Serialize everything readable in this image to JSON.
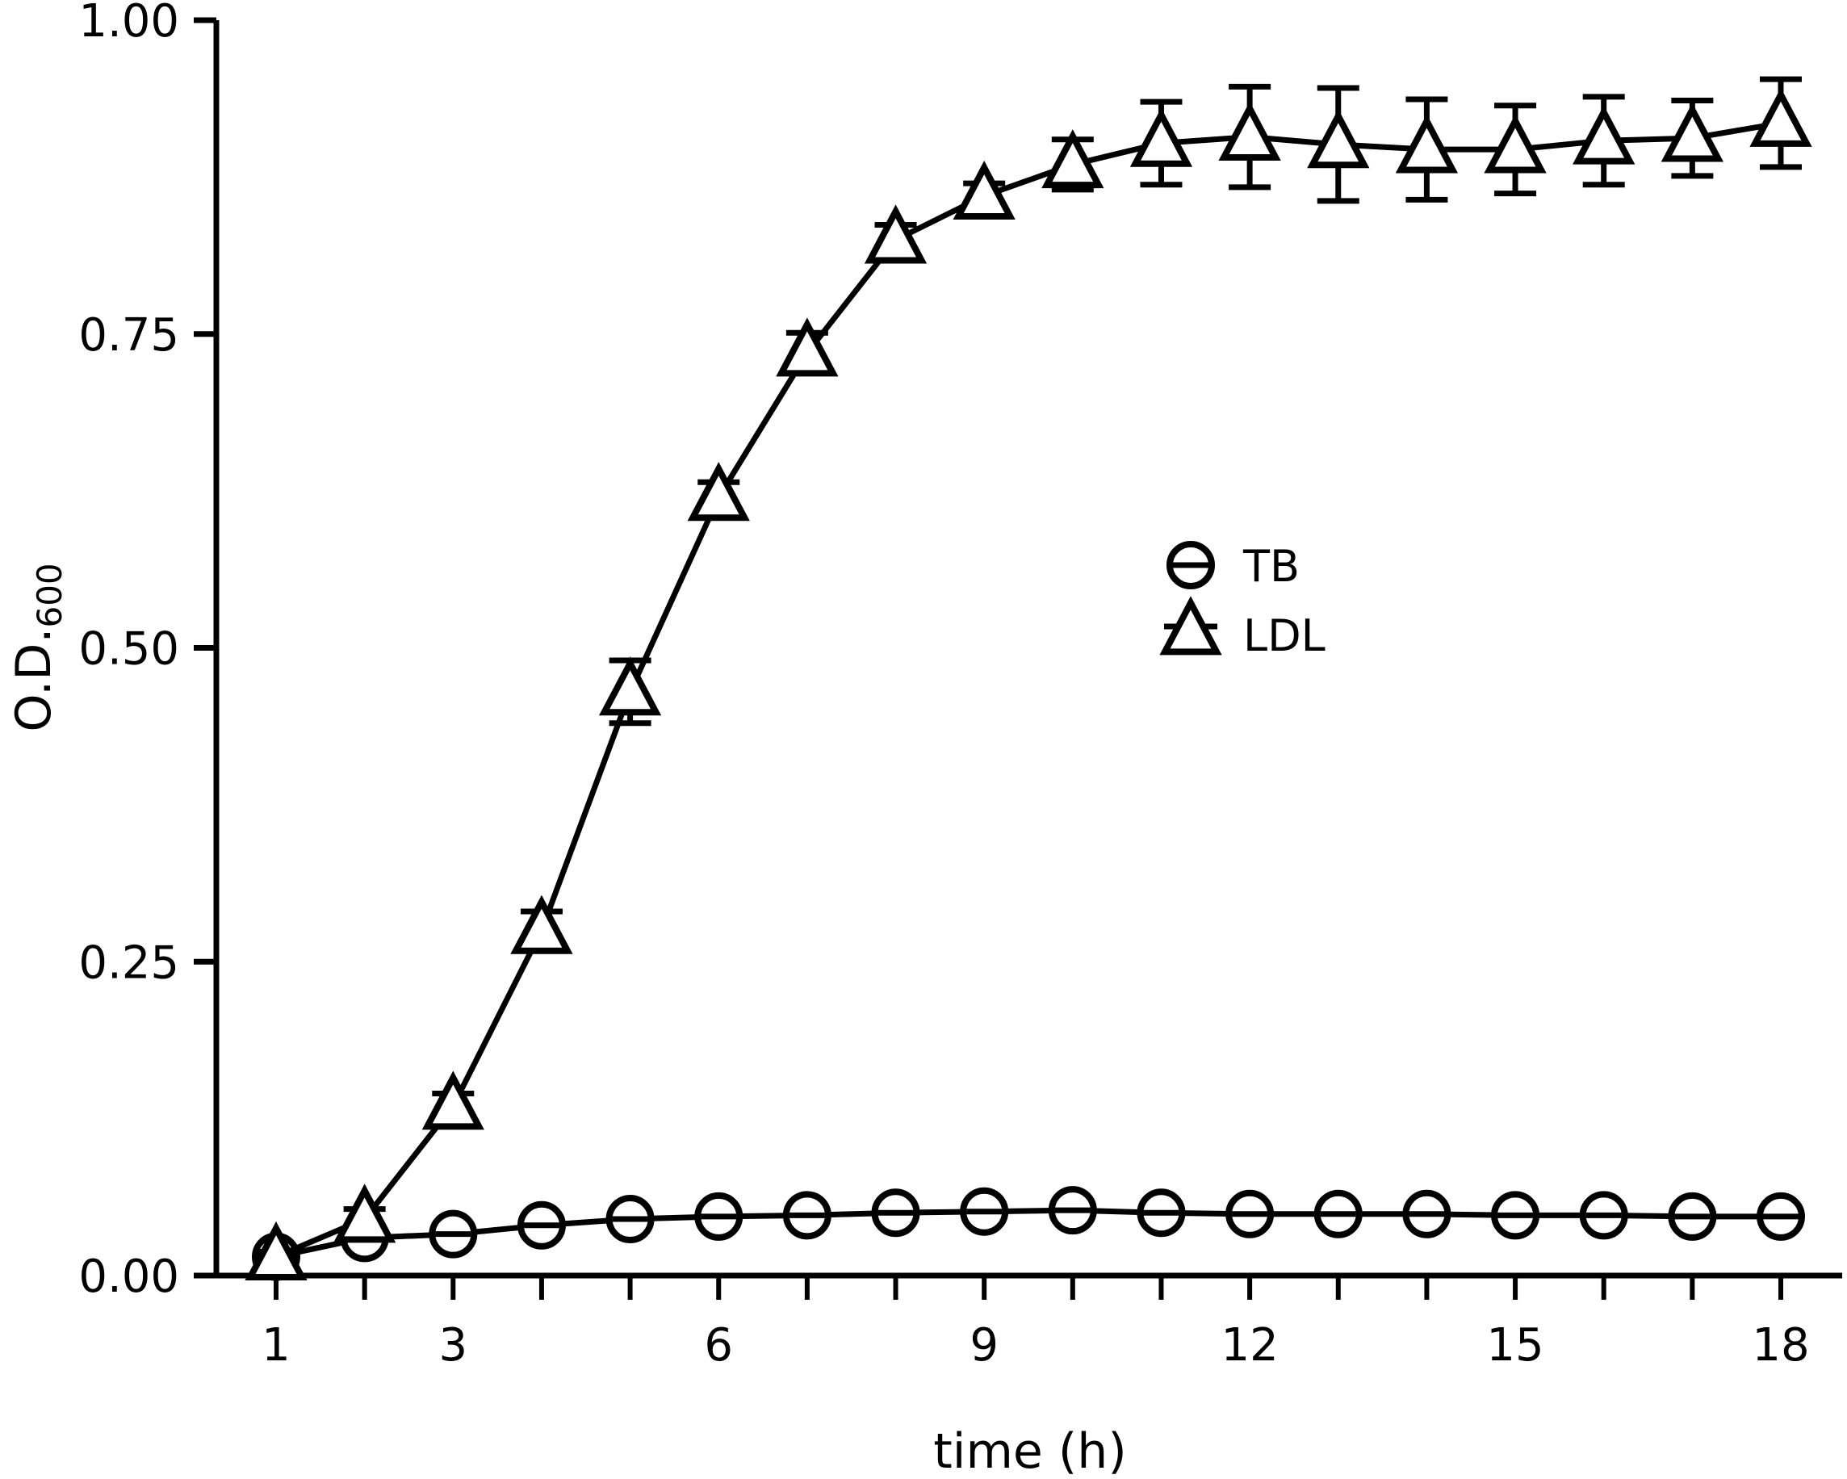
{
  "chart_data": {
    "type": "line",
    "title": "",
    "xlabel": "time (h)",
    "ylabel_main": "O.D.",
    "ylabel_sub": "600",
    "xlim": [
      1,
      18
    ],
    "ylim": [
      0,
      1
    ],
    "xticks": [
      1,
      3,
      6,
      9,
      12,
      15,
      18
    ],
    "xtick_labels": [
      "1",
      "3",
      "6",
      "9",
      "12",
      "15",
      "18"
    ],
    "yticks": [
      0,
      0.25,
      0.5,
      0.75,
      1.0
    ],
    "ytick_labels": [
      "0.00",
      "0.25",
      "0.50",
      "0.75",
      "1.00"
    ],
    "grid": false,
    "legend_position": "center-right",
    "x": [
      1,
      2,
      3,
      4,
      5,
      6,
      7,
      8,
      9,
      10,
      11,
      12,
      13,
      14,
      15,
      16,
      17,
      18
    ],
    "series": [
      {
        "name": "TB",
        "marker": "circle",
        "values": [
          0.015,
          0.03,
          0.033,
          0.04,
          0.045,
          0.047,
          0.048,
          0.05,
          0.051,
          0.052,
          0.05,
          0.049,
          0.049,
          0.049,
          0.048,
          0.048,
          0.047,
          0.047
        ],
        "errors": [
          0.003,
          0.005,
          0.003,
          0.003,
          0.003,
          0.003,
          0.003,
          0.003,
          0.003,
          0.003,
          0.003,
          0.003,
          0.003,
          0.003,
          0.003,
          0.003,
          0.003,
          0.003
        ]
      },
      {
        "name": "LDL",
        "marker": "triangle",
        "values": [
          0.015,
          0.045,
          0.135,
          0.275,
          0.465,
          0.62,
          0.735,
          0.825,
          0.86,
          0.885,
          0.902,
          0.907,
          0.901,
          0.897,
          0.897,
          0.904,
          0.906,
          0.918
        ],
        "errors": [
          0.004,
          0.008,
          0.01,
          0.015,
          0.025,
          0.012,
          0.016,
          0.012,
          0.01,
          0.02,
          0.033,
          0.04,
          0.045,
          0.04,
          0.035,
          0.035,
          0.03,
          0.035
        ]
      }
    ]
  }
}
